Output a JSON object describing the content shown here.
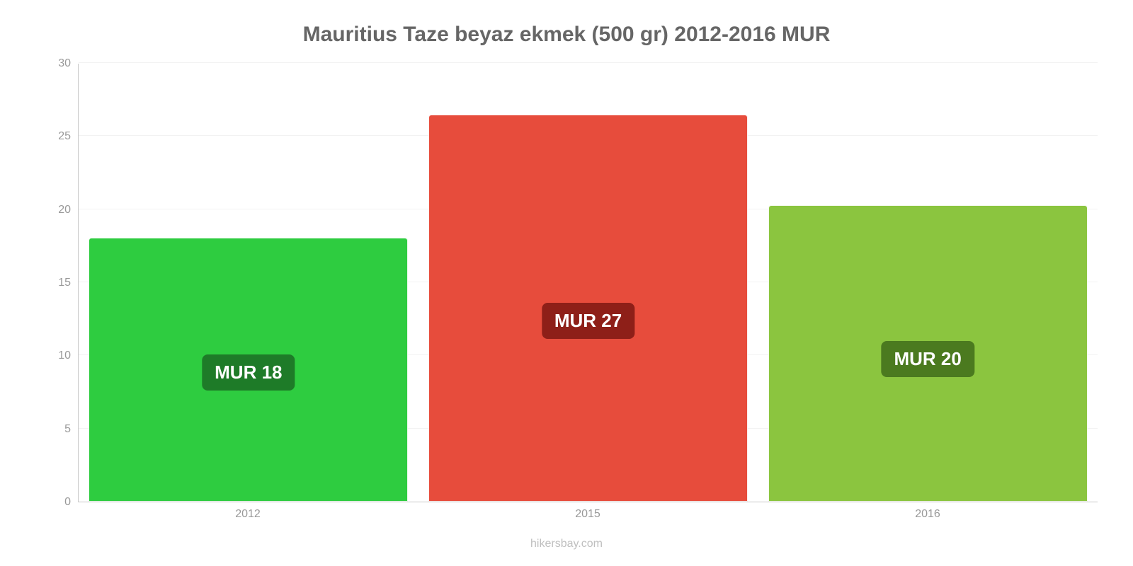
{
  "chart": {
    "type": "bar",
    "title": "Mauritius Taze beyaz ekmek (500 gr) 2012-2016 MUR",
    "title_color": "#666666",
    "title_fontsize": 30,
    "background_color": "#ffffff",
    "grid_color": "#f2f2f2",
    "axis_color": "#c8c8c8",
    "tick_label_color": "#999999",
    "tick_label_fontsize": 16,
    "ylim": [
      0,
      30
    ],
    "ytick_step": 5,
    "yticks": [
      0,
      5,
      10,
      15,
      20,
      25,
      30
    ],
    "categories": [
      "2012",
      "2015",
      "2016"
    ],
    "values": [
      18.1,
      26.5,
      20.3
    ],
    "value_labels": [
      "MUR 18",
      "MUR 27",
      "MUR 20"
    ],
    "bar_colors": [
      "#2ecc40",
      "#e74c3c",
      "#8bc53f"
    ],
    "badge_colors": [
      "#1e7b28",
      "#8e1f18",
      "#4b7a1f"
    ],
    "badge_text_color": "#ffffff",
    "badge_fontsize": 26,
    "bar_width": 0.94,
    "credit": "hikersbay.com",
    "credit_color": "#bfbfbf",
    "credit_fontsize": 16
  }
}
